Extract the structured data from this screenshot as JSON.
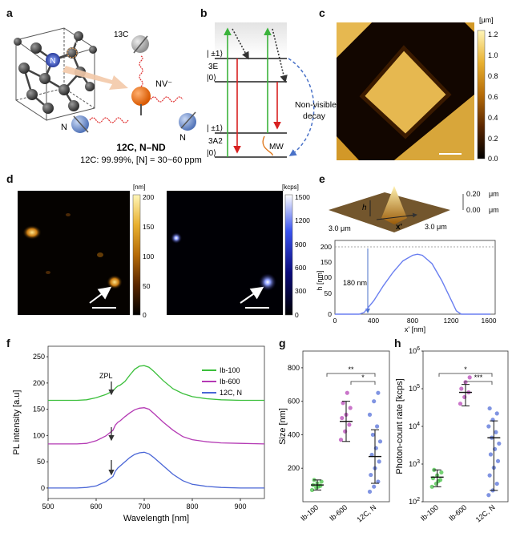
{
  "panels": {
    "a": {
      "label": "a",
      "atoms": {
        "n": "N",
        "v": "V",
        "c13": "13C",
        "nv": "NV⁻",
        "n_left": "N",
        "n_right": "N"
      },
      "caption_title": "12C, N–ND",
      "caption_line": "12C: 99.99%, [N] = 30~60 ppm"
    },
    "b": {
      "label": "b",
      "levels": {
        "e_pm1": "| ±1⟩",
        "e_0": "|0⟩",
        "e_name": "3E",
        "a_pm1": "| ±1⟩",
        "a_0": "|0⟩",
        "a_name": "3A2"
      },
      "decay_text_1": "Non-visible",
      "decay_text_2": "decay",
      "mw": "MW"
    },
    "c": {
      "label": "c",
      "colorbar_unit": "[μm]",
      "colorbar_ticks": [
        "1.2",
        "1.0",
        "0.8",
        "0.6",
        "0.4",
        "0.2",
        "0.0"
      ]
    },
    "d": {
      "label": "d",
      "left_unit": "[nm]",
      "left_ticks": [
        "200",
        "150",
        "100",
        "50",
        "0"
      ],
      "right_unit": "[kcps]",
      "right_ticks": [
        "1500",
        "1200",
        "900",
        "600",
        "300",
        "0"
      ]
    },
    "e": {
      "label": "e",
      "z_top": "0.20",
      "z_bottom": "0.00",
      "z_unit": "μm",
      "axis_h": "h",
      "axis_x": "x'",
      "side_left": "3.0 μm",
      "side_right": "3.0 μm",
      "annot": "180 nm",
      "ylabel": "h [nm]",
      "xlabel": "x' [nm]",
      "yticks": [
        "200",
        "150",
        "100",
        "50",
        "0"
      ],
      "xticks": [
        "0",
        "400",
        "800",
        "1200",
        "1600"
      ]
    },
    "f": {
      "label": "f",
      "zpl": "ZPL"
    },
    "g": {
      "label": "g",
      "sig1": "**",
      "sig2": "*"
    },
    "h": {
      "label": "h",
      "sig1": "*",
      "sig2": "***"
    }
  },
  "colors": {
    "green": "#3bbf3b",
    "magenta": "#b43ab4",
    "blue": "#4a66d6",
    "amber": "#c9a227"
  },
  "chart_data": [
    {
      "id": "e_profile",
      "type": "line",
      "xlabel": "x' [nm]",
      "ylabel": "h [nm]",
      "xlim": [
        0,
        1650
      ],
      "ylim": [
        0,
        200
      ],
      "x": [
        0,
        250,
        300,
        400,
        500,
        600,
        700,
        800,
        850,
        900,
        1000,
        1100,
        1200,
        1250,
        1300,
        1400,
        1600
      ],
      "series": [
        {
          "values": [
            0,
            0,
            5,
            40,
            85,
            125,
            158,
            175,
            178,
            175,
            150,
            100,
            40,
            10,
            0,
            0,
            0
          ]
        }
      ]
    },
    {
      "id": "f_spectra",
      "type": "line",
      "xlabel": "Wavelength [nm]",
      "ylabel": "PL intensity [a.u]",
      "xlim": [
        500,
        950
      ],
      "ylim": [
        -20,
        270
      ],
      "xticks": [
        "500",
        "600",
        "700",
        "800",
        "900"
      ],
      "yticks": [
        "0",
        "50",
        "100",
        "150",
        "200",
        "250"
      ],
      "x": [
        500,
        560,
        580,
        600,
        620,
        635,
        640,
        645,
        650,
        660,
        670,
        680,
        690,
        700,
        710,
        720,
        740,
        760,
        780,
        800,
        830,
        860,
        900,
        950
      ],
      "series": [
        {
          "name": "Ib-100",
          "values": [
            167,
            167,
            168,
            172,
            178,
            185,
            190,
            194,
            196,
            203,
            215,
            226,
            232,
            233,
            230,
            222,
            204,
            189,
            180,
            174,
            170,
            168,
            167,
            167
          ]
        },
        {
          "name": "Ib-600",
          "values": [
            84,
            84,
            85,
            90,
            99,
            110,
            120,
            125,
            128,
            136,
            143,
            149,
            152,
            153,
            150,
            142,
            125,
            110,
            98,
            92,
            88,
            86,
            85,
            84
          ]
        },
        {
          "name": "12C, N",
          "values": [
            0,
            0,
            1,
            4,
            12,
            22,
            32,
            38,
            42,
            50,
            58,
            64,
            67,
            68,
            65,
            58,
            42,
            26,
            14,
            7,
            3,
            1,
            0,
            0
          ]
        }
      ]
    },
    {
      "id": "g_size",
      "type": "scatter",
      "ylabel": "Size [nm]",
      "ylim": [
        0,
        900
      ],
      "yticks": [
        "200",
        "400",
        "600",
        "800"
      ],
      "categories": [
        "Ib-100",
        "Ib-600",
        "12C, N"
      ],
      "series": [
        {
          "name": "Ib-100",
          "mean": 100,
          "sd": 30,
          "values": [
            70,
            85,
            95,
            100,
            110,
            120,
            130,
            90
          ]
        },
        {
          "name": "Ib-600",
          "mean": 480,
          "sd": 120,
          "values": [
            370,
            420,
            460,
            500,
            520,
            560,
            590,
            650
          ]
        },
        {
          "name": "12C, N",
          "mean": 270,
          "sd": 160,
          "values": [
            60,
            90,
            120,
            160,
            200,
            240,
            280,
            320,
            360,
            400,
            450,
            520,
            600,
            650
          ]
        }
      ]
    },
    {
      "id": "h_photon",
      "type": "scatter",
      "ylabel": "Photon-count rate [kcps]",
      "log_scale": true,
      "ylim": [
        100,
        1000000
      ],
      "yticks": [
        "10^2",
        "10^3",
        "10^4",
        "10^5",
        "10^6"
      ],
      "categories": [
        "Ib-100",
        "Ib-600",
        "12C, N"
      ],
      "series": [
        {
          "name": "Ib-100",
          "mean": 450,
          "lo": 250,
          "hi": 700,
          "values": [
            250,
            300,
            380,
            420,
            500,
            600,
            700,
            350
          ]
        },
        {
          "name": "Ib-600",
          "mean": 80000,
          "lo": 35000,
          "hi": 130000,
          "values": [
            40000,
            60000,
            80000,
            100000,
            150000,
            200000
          ]
        },
        {
          "name": "12C, N",
          "mean": 5000,
          "lo": 200,
          "hi": 14000,
          "values": [
            150,
            200,
            300,
            500,
            800,
            1200,
            1800,
            2500,
            3500,
            5000,
            7000,
            10000,
            15000,
            22000,
            30000
          ]
        }
      ]
    }
  ]
}
